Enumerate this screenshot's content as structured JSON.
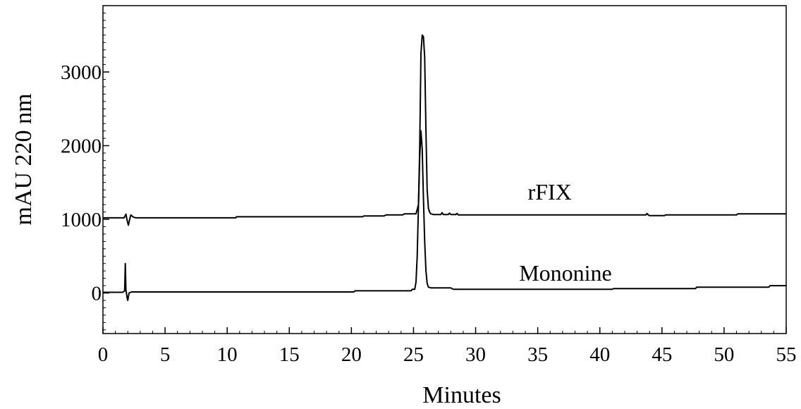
{
  "chart_data": {
    "type": "line",
    "title": "",
    "xlabel": "Minutes",
    "ylabel": "mAU 220 nm",
    "xlim": [
      0,
      55
    ],
    "ylim": [
      -550,
      3900
    ],
    "x_ticks": [
      0,
      5,
      10,
      15,
      20,
      25,
      30,
      35,
      40,
      45,
      50,
      55
    ],
    "y_ticks": [
      0,
      1000,
      2000,
      3000
    ],
    "grid": false,
    "legend": "none",
    "line_color": "#000000",
    "series": [
      {
        "name": "rFIX",
        "x": [
          0,
          1.7,
          1.85,
          1.95,
          2.05,
          2.15,
          2.25,
          2.45,
          2.65,
          3.0,
          10.7,
          10.75,
          20.9,
          21.0,
          22.6,
          22.8,
          24.1,
          24.3,
          25.2,
          25.4,
          25.5,
          25.6,
          25.7,
          25.8,
          25.9,
          26.0,
          26.1,
          26.2,
          26.3,
          26.4,
          26.6,
          27.2,
          27.3,
          27.4,
          27.8,
          27.9,
          28.0,
          28.4,
          28.5,
          28.6,
          33.0,
          43.7,
          43.8,
          43.9,
          44.0,
          45.2,
          45.3,
          51.0,
          51.1,
          55
        ],
        "y": [
          1020,
          1020,
          1070,
          980,
          920,
          1000,
          1060,
          1030,
          1020,
          1020,
          1020,
          1035,
          1035,
          1045,
          1045,
          1060,
          1060,
          1075,
          1075,
          1200,
          2000,
          3250,
          3500,
          3480,
          3200,
          2200,
          1400,
          1150,
          1095,
          1075,
          1065,
          1065,
          1090,
          1065,
          1065,
          1085,
          1065,
          1065,
          1080,
          1060,
          1060,
          1060,
          1080,
          1060,
          1050,
          1050,
          1060,
          1060,
          1075,
          1075
        ]
      },
      {
        "name": "Mononine",
        "x": [
          0,
          1.6,
          1.75,
          1.8,
          1.85,
          1.95,
          2.0,
          2.1,
          2.3,
          10,
          20.2,
          20.3,
          24.8,
          24.9,
          25.1,
          25.2,
          25.3,
          25.4,
          25.5,
          25.6,
          25.7,
          25.8,
          25.9,
          26.0,
          26.1,
          26.2,
          26.4,
          28.0,
          28.2,
          41.0,
          41.1,
          47.7,
          47.8,
          53.6,
          53.7,
          55
        ],
        "y": [
          10,
          10,
          30,
          400,
          40,
          -70,
          -100,
          0,
          15,
          15,
          15,
          30,
          30,
          50,
          50,
          150,
          500,
          1200,
          1850,
          2200,
          1950,
          1300,
          700,
          300,
          130,
          80,
          70,
          70,
          50,
          50,
          60,
          60,
          80,
          80,
          100,
          100
        ]
      }
    ],
    "annotations": [
      {
        "text": "rFIX",
        "x": 34.2,
        "y": 1270
      },
      {
        "text": "Mononine",
        "x": 33.5,
        "y": 170
      }
    ]
  }
}
